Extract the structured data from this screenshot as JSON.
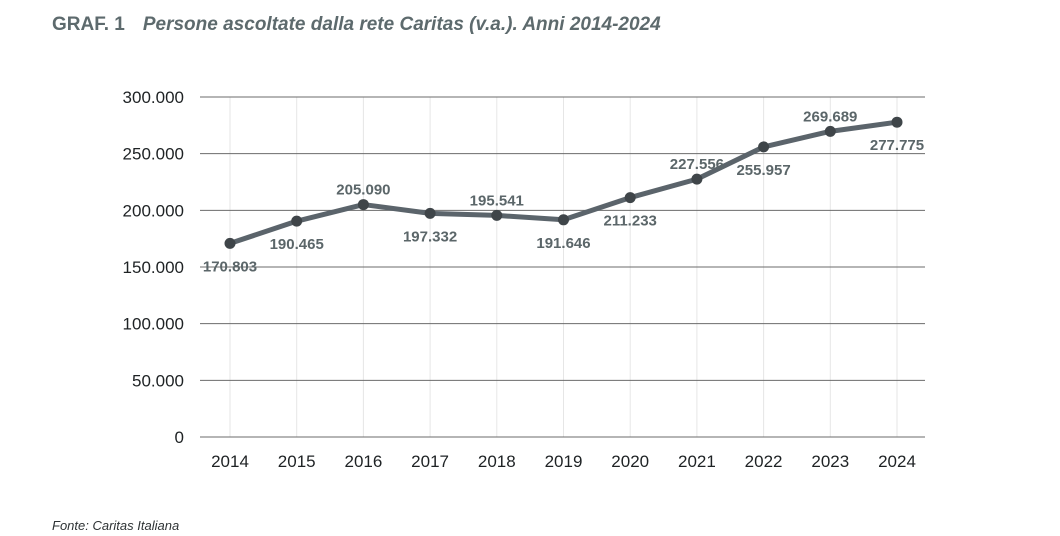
{
  "header": {
    "figure_number": "GRAF. 1",
    "title": "Persone ascoltate dalla rete Caritas (v.a.). Anni 2014-2024"
  },
  "footer": {
    "source": "Fonte: Caritas Italiana"
  },
  "colors": {
    "line": "#5b646b",
    "marker": "#3f4549",
    "grid_major": "#6b6b6b",
    "grid_vertical": "#e6e6e6",
    "label": "#5b6669",
    "tick": "#1e2224"
  },
  "chart_data": {
    "type": "line",
    "title": "Persone ascoltate dalla rete Caritas (v.a.). Anni 2014-2024",
    "xlabel": "",
    "ylabel": "",
    "categories": [
      "2014",
      "2015",
      "2016",
      "2017",
      "2018",
      "2019",
      "2020",
      "2021",
      "2022",
      "2023",
      "2024"
    ],
    "series": [
      {
        "values": [
          170803,
          190465,
          205090,
          197332,
          195541,
          191646,
          211233,
          227556,
          255957,
          269689,
          277775
        ],
        "labels": [
          "170.803",
          "190.465",
          "205.090",
          "197.332",
          "195.541",
          "191.646",
          "211.233",
          "227.556",
          "255.957",
          "269.689",
          "277.775"
        ],
        "label_position": [
          "below",
          "below",
          "above",
          "below",
          "above",
          "below",
          "below",
          "above",
          "below",
          "above",
          "below"
        ]
      }
    ],
    "ylim": [
      0,
      300000
    ],
    "yticks": [
      0,
      50000,
      100000,
      150000,
      200000,
      250000,
      300000
    ],
    "ytick_labels": [
      "0",
      "50.000",
      "100.000",
      "150.000",
      "200.000",
      "250.000",
      "300.000"
    ],
    "grid": true,
    "legend": "none"
  }
}
